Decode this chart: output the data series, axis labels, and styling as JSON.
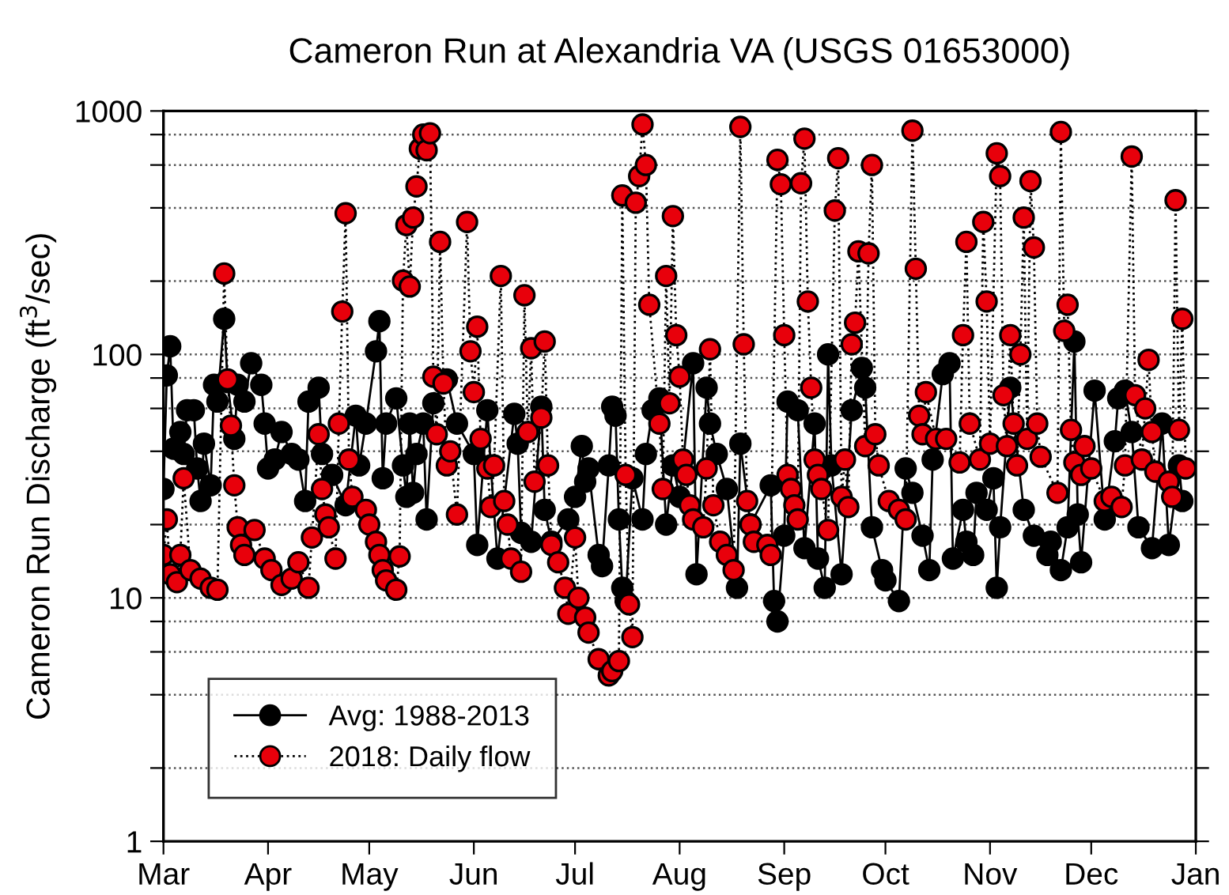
{
  "chart_data": {
    "type": "line",
    "title": "Cameron Run at Alexandria VA (USGS 01653000)",
    "ylabel": "Cameron Run Discharge (ft$^{3}$/sec)",
    "log": "y",
    "ylim": [
      1,
      1000
    ],
    "yticks": [
      1,
      {
        "value": 2,
        "label": null
      },
      {
        "value": 4,
        "label": null
      },
      {
        "value": 6,
        "label": null
      },
      {
        "value": 8,
        "label": null
      },
      10,
      {
        "value": 20,
        "label": null
      },
      {
        "value": 40,
        "label": null
      },
      {
        "value": 60,
        "label": null
      },
      {
        "value": 80,
        "label": null
      },
      100,
      {
        "value": 200,
        "label": null
      },
      {
        "value": 400,
        "label": null
      },
      {
        "value": 600,
        "label": null
      },
      {
        "value": 800,
        "label": null
      },
      1000
    ],
    "xlim": [
      "2018-03-01",
      "2019-01-01"
    ],
    "xticks": [
      {
        "value": "2018-03-01",
        "label": "Mar"
      },
      {
        "value": "2018-04-01",
        "label": "Apr"
      },
      {
        "value": "2018-05-01",
        "label": "May"
      },
      {
        "value": "2018-06-01",
        "label": "Jun"
      },
      {
        "value": "2018-07-01",
        "label": "Jul"
      },
      {
        "value": "2018-08-01",
        "label": "Aug"
      },
      {
        "value": "2018-09-01",
        "label": "Sep"
      },
      {
        "value": "2018-10-01",
        "label": "Oct"
      },
      {
        "value": "2018-11-01",
        "label": "Nov"
      },
      {
        "value": "2018-12-01",
        "label": "Dec"
      },
      {
        "value": "2019-01-01",
        "label": "Jan"
      }
    ],
    "grid": "y",
    "legend": "bottom left",
    "marker": "circle",
    "series": [
      {
        "name": "Avg: 1988-2013",
        "color": "#000000",
        "line_style": "solid",
        "x": [
          "2018-03-01",
          "2018-03-02",
          "2018-03-03",
          "2018-03-04",
          "2018-03-06",
          "2018-03-07",
          "2018-03-08",
          "2018-03-10",
          "2018-03-11",
          "2018-03-12",
          "2018-03-13",
          "2018-03-15",
          "2018-03-16",
          "2018-03-17",
          "2018-03-19",
          "2018-03-20",
          "2018-03-22",
          "2018-03-23",
          "2018-03-25",
          "2018-03-27",
          "2018-03-30",
          "2018-03-31",
          "2018-04-01",
          "2018-04-03",
          "2018-04-05",
          "2018-04-08",
          "2018-04-10",
          "2018-04-12",
          "2018-04-13",
          "2018-04-16",
          "2018-04-17",
          "2018-04-20",
          "2018-04-24",
          "2018-04-27",
          "2018-04-28",
          "2018-04-30",
          "2018-05-03",
          "2018-05-04",
          "2018-05-05",
          "2018-05-06",
          "2018-05-09",
          "2018-05-11",
          "2018-05-12",
          "2018-05-13",
          "2018-05-14",
          "2018-05-15",
          "2018-05-17",
          "2018-05-18",
          "2018-05-20",
          "2018-05-24",
          "2018-05-27",
          "2018-06-01",
          "2018-06-02",
          "2018-06-05",
          "2018-06-06",
          "2018-06-08",
          "2018-06-13",
          "2018-06-14",
          "2018-06-15",
          "2018-06-18",
          "2018-06-21",
          "2018-06-22",
          "2018-06-24",
          "2018-06-29",
          "2018-07-01",
          "2018-07-03",
          "2018-07-04",
          "2018-07-05",
          "2018-07-08",
          "2018-07-09",
          "2018-07-11",
          "2018-07-12",
          "2018-07-13",
          "2018-07-14",
          "2018-07-15",
          "2018-07-16",
          "2018-07-18",
          "2018-07-21",
          "2018-07-22",
          "2018-07-24",
          "2018-07-26",
          "2018-07-28",
          "2018-07-30",
          "2018-08-01",
          "2018-08-05",
          "2018-08-06",
          "2018-08-09",
          "2018-08-10",
          "2018-08-12",
          "2018-08-15",
          "2018-08-18",
          "2018-08-19",
          "2018-08-22",
          "2018-08-28",
          "2018-08-29",
          "2018-08-30",
          "2018-09-01",
          "2018-09-02",
          "2018-09-05",
          "2018-09-07",
          "2018-09-10",
          "2018-09-11",
          "2018-09-13",
          "2018-09-14",
          "2018-09-15",
          "2018-09-18",
          "2018-09-21",
          "2018-09-24",
          "2018-09-25",
          "2018-09-27",
          "2018-09-30",
          "2018-10-01",
          "2018-10-05",
          "2018-10-07",
          "2018-10-09",
          "2018-10-12",
          "2018-10-14",
          "2018-10-15",
          "2018-10-18",
          "2018-10-20",
          "2018-10-21",
          "2018-10-24",
          "2018-10-25",
          "2018-10-27",
          "2018-10-28",
          "2018-10-31",
          "2018-11-02",
          "2018-11-03",
          "2018-11-04",
          "2018-11-07",
          "2018-11-11",
          "2018-11-14",
          "2018-11-18",
          "2018-11-19",
          "2018-11-22",
          "2018-11-24",
          "2018-11-26",
          "2018-11-27",
          "2018-11-28",
          "2018-12-02",
          "2018-12-05",
          "2018-12-08",
          "2018-12-09",
          "2018-12-11",
          "2018-12-13",
          "2018-12-15",
          "2018-12-19",
          "2018-12-22",
          "2018-12-24",
          "2018-12-27",
          "2018-12-28"
        ],
        "values": [
          28,
          82,
          108,
          41,
          48,
          39,
          59,
          59,
          34,
          25,
          43,
          29,
          75,
          64,
          140,
          77,
          45,
          75,
          64,
          92,
          75,
          52,
          34,
          37,
          48,
          39,
          37,
          25,
          64,
          73,
          39,
          32,
          24,
          56,
          35,
          52,
          103,
          137,
          31,
          52,
          66,
          35,
          26,
          52,
          27,
          39,
          52,
          21,
          63,
          79,
          52,
          39,
          16.5,
          59,
          35,
          14.5,
          57,
          43,
          18.5,
          17,
          61,
          23,
          17,
          21,
          26,
          42,
          30,
          34,
          15,
          13.5,
          35,
          61,
          56,
          21,
          11,
          9.7,
          31,
          21,
          39,
          59,
          66,
          20,
          35,
          26,
          92,
          12.5,
          73,
          52,
          39,
          28,
          11,
          43,
          20,
          29,
          9.7,
          8,
          18,
          64,
          59,
          16,
          52,
          14.5,
          11,
          100,
          35,
          12.5,
          59,
          88,
          73,
          19.5,
          13,
          11.8,
          9.7,
          34,
          27,
          18,
          13,
          37,
          83,
          92,
          14.5,
          23,
          17,
          15,
          27,
          23,
          31,
          11,
          19.5,
          73,
          23,
          18,
          15,
          17,
          13,
          19.5,
          113,
          22,
          14,
          71,
          21,
          44,
          66,
          71,
          48,
          19.5,
          16,
          52,
          16.5,
          35,
          25
        ]
      },
      {
        "name": "2018: Daily flow",
        "color": "#e8000b",
        "line_style": "dotted",
        "x": [
          "2018-03-01",
          "2018-03-02",
          "2018-03-03",
          "2018-03-05",
          "2018-03-06",
          "2018-03-07",
          "2018-03-09",
          "2018-03-12",
          "2018-03-15",
          "2018-03-17",
          "2018-03-19",
          "2018-03-20",
          "2018-03-21",
          "2018-03-22",
          "2018-03-23",
          "2018-03-24",
          "2018-03-25",
          "2018-03-28",
          "2018-03-31",
          "2018-04-02",
          "2018-04-05",
          "2018-04-08",
          "2018-04-10",
          "2018-04-13",
          "2018-04-14",
          "2018-04-16",
          "2018-04-17",
          "2018-04-18",
          "2018-04-19",
          "2018-04-21",
          "2018-04-22",
          "2018-04-23",
          "2018-04-24",
          "2018-04-25",
          "2018-04-26",
          "2018-04-30",
          "2018-05-01",
          "2018-05-03",
          "2018-05-04",
          "2018-05-05",
          "2018-05-06",
          "2018-05-09",
          "2018-05-10",
          "2018-05-11",
          "2018-05-12",
          "2018-05-13",
          "2018-05-14",
          "2018-05-15",
          "2018-05-16",
          "2018-05-17",
          "2018-05-18",
          "2018-05-19",
          "2018-05-20",
          "2018-05-21",
          "2018-05-22",
          "2018-05-23",
          "2018-05-24",
          "2018-05-25",
          "2018-05-27",
          "2018-05-30",
          "2018-05-31",
          "2018-06-01",
          "2018-06-02",
          "2018-06-03",
          "2018-06-05",
          "2018-06-06",
          "2018-06-07",
          "2018-06-09",
          "2018-06-10",
          "2018-06-11",
          "2018-06-12",
          "2018-06-15",
          "2018-06-16",
          "2018-06-17",
          "2018-06-18",
          "2018-06-19",
          "2018-06-21",
          "2018-06-22",
          "2018-06-23",
          "2018-06-24",
          "2018-06-26",
          "2018-06-28",
          "2018-06-29",
          "2018-07-01",
          "2018-07-02",
          "2018-07-04",
          "2018-07-05",
          "2018-07-08",
          "2018-07-11",
          "2018-07-12",
          "2018-07-14",
          "2018-07-15",
          "2018-07-16",
          "2018-07-17",
          "2018-07-18",
          "2018-07-19",
          "2018-07-20",
          "2018-07-21",
          "2018-07-22",
          "2018-07-23",
          "2018-07-26",
          "2018-07-27",
          "2018-07-28",
          "2018-07-29",
          "2018-07-30",
          "2018-07-31",
          "2018-08-01",
          "2018-08-02",
          "2018-08-03",
          "2018-08-04",
          "2018-08-05",
          "2018-08-08",
          "2018-08-09",
          "2018-08-10",
          "2018-08-11",
          "2018-08-13",
          "2018-08-15",
          "2018-08-17",
          "2018-08-19",
          "2018-08-20",
          "2018-08-21",
          "2018-08-22",
          "2018-08-23",
          "2018-08-27",
          "2018-08-28",
          "2018-08-30",
          "2018-08-31",
          "2018-09-01",
          "2018-09-02",
          "2018-09-03",
          "2018-09-04",
          "2018-09-05",
          "2018-09-06",
          "2018-09-07",
          "2018-09-08",
          "2018-09-09",
          "2018-09-10",
          "2018-09-11",
          "2018-09-12",
          "2018-09-14",
          "2018-09-16",
          "2018-09-17",
          "2018-09-18",
          "2018-09-19",
          "2018-09-20",
          "2018-09-21",
          "2018-09-22",
          "2018-09-23",
          "2018-09-25",
          "2018-09-26",
          "2018-09-27",
          "2018-09-28",
          "2018-09-29",
          "2018-10-02",
          "2018-10-05",
          "2018-10-07",
          "2018-10-09",
          "2018-10-10",
          "2018-10-11",
          "2018-10-12",
          "2018-10-13",
          "2018-10-16",
          "2018-10-19",
          "2018-10-23",
          "2018-10-24",
          "2018-10-25",
          "2018-10-26",
          "2018-10-29",
          "2018-10-30",
          "2018-10-31",
          "2018-11-01",
          "2018-11-03",
          "2018-11-04",
          "2018-11-05",
          "2018-11-06",
          "2018-11-07",
          "2018-11-08",
          "2018-11-09",
          "2018-11-10",
          "2018-11-11",
          "2018-11-12",
          "2018-11-13",
          "2018-11-14",
          "2018-11-15",
          "2018-11-16",
          "2018-11-21",
          "2018-11-22",
          "2018-11-23",
          "2018-11-24",
          "2018-11-25",
          "2018-11-26",
          "2018-11-28",
          "2018-11-29",
          "2018-12-01",
          "2018-12-05",
          "2018-12-07",
          "2018-12-10",
          "2018-12-11",
          "2018-12-13",
          "2018-12-14",
          "2018-12-16",
          "2018-12-17",
          "2018-12-18",
          "2018-12-19",
          "2018-12-20",
          "2018-12-24",
          "2018-12-25",
          "2018-12-26",
          "2018-12-27",
          "2018-12-28",
          "2018-12-29"
        ],
        "values": [
          15,
          21,
          12.5,
          11.6,
          15,
          31,
          13,
          12,
          11,
          10.8,
          215,
          79,
          51,
          29,
          19.5,
          16.5,
          15,
          19,
          14.5,
          13,
          11.3,
          12,
          14,
          11,
          17.7,
          47,
          28,
          22,
          19.5,
          14.5,
          52,
          150,
          380,
          37,
          26,
          23,
          20,
          17,
          15,
          13,
          11.8,
          10.8,
          14.8,
          201,
          340,
          190,
          365,
          490,
          700,
          800,
          690,
          810,
          81,
          47,
          290,
          76,
          35,
          40,
          22,
          350,
          103,
          70,
          130,
          45,
          34,
          23.6,
          35,
          210,
          25,
          20,
          14.5,
          12.8,
          175,
          48,
          106,
          30,
          55,
          113,
          35,
          16.5,
          14,
          11,
          8.6,
          17.7,
          10,
          8.3,
          7.2,
          5.6,
          4.8,
          5,
          5.5,
          450,
          32,
          9.4,
          6.9,
          420,
          540,
          880,
          600,
          160,
          52,
          28,
          210,
          63,
          370,
          120,
          81,
          37,
          32,
          24,
          21,
          19.5,
          34,
          105,
          24,
          17,
          15,
          13,
          860,
          110,
          25,
          20,
          17,
          16.5,
          15,
          630,
          500,
          120,
          32,
          28,
          24,
          21,
          505,
          770,
          165,
          73,
          37,
          32,
          28,
          19,
          390,
          640,
          26,
          37,
          23.6,
          110,
          135,
          265,
          42,
          260,
          600,
          47,
          35,
          25,
          23,
          21,
          830,
          225,
          56,
          47,
          70,
          45,
          45,
          36,
          120,
          290,
          52,
          37,
          350,
          165,
          43,
          670,
          540,
          68,
          42,
          120,
          52,
          35,
          100,
          365,
          45,
          515,
          275,
          52,
          38,
          27,
          820,
          125,
          160,
          49,
          36,
          32,
          42,
          34,
          25,
          26,
          23.6,
          35,
          650,
          68,
          37,
          60,
          95,
          48,
          33,
          30,
          26,
          430,
          49,
          140,
          34
        ]
      }
    ]
  }
}
